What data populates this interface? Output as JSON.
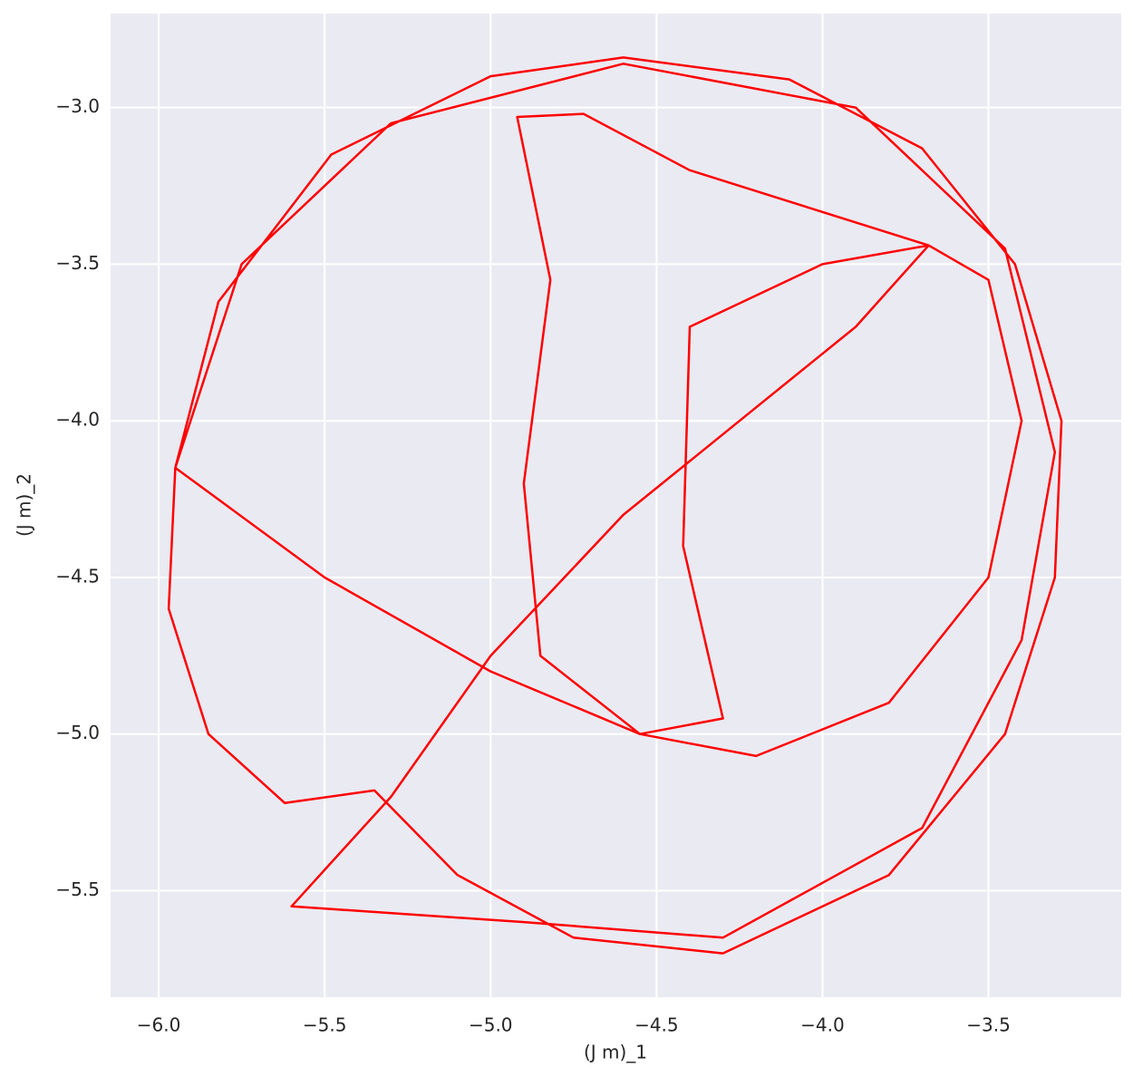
{
  "chart_data": {
    "type": "line",
    "xlabel": "(J m)_1",
    "ylabel": "(J m)_2",
    "color": "#ff0000",
    "background": "#eaeaf2",
    "grid": true,
    "xlim": [
      -6.145,
      -3.1
    ],
    "ylim": [
      -5.84,
      -2.7
    ],
    "xticks": [
      {
        "value": -6.0,
        "label": "−6.0"
      },
      {
        "value": -5.5,
        "label": "−5.5"
      },
      {
        "value": -5.0,
        "label": "−5.0"
      },
      {
        "value": -4.5,
        "label": "−4.5"
      },
      {
        "value": -4.0,
        "label": "−4.0"
      },
      {
        "value": -3.5,
        "label": "−3.5"
      }
    ],
    "yticks": [
      {
        "value": -3.0,
        "label": "−3.0"
      },
      {
        "value": -3.5,
        "label": "−3.5"
      },
      {
        "value": -4.0,
        "label": "−4.0"
      },
      {
        "value": -4.5,
        "label": "−4.5"
      },
      {
        "value": -5.0,
        "label": "−5.0"
      },
      {
        "value": -5.5,
        "label": "−5.5"
      }
    ],
    "x": [
      -5.95,
      -5.82,
      -5.48,
      -5.0,
      -4.6,
      -4.1,
      -3.7,
      -3.42,
      -3.28,
      -3.3,
      -3.45,
      -3.8,
      -4.3,
      -4.75,
      -5.1,
      -5.35,
      -5.62,
      -5.85,
      -5.97,
      -5.95,
      -5.5,
      -5.0,
      -4.55,
      -4.2,
      -3.8,
      -3.5,
      -3.4,
      -3.5,
      -3.68,
      -4.0,
      -4.4,
      -4.42,
      -4.3,
      -4.55,
      -4.85,
      -4.9,
      -4.82,
      -4.92,
      -4.72,
      -4.4,
      -4.1,
      -3.68,
      -3.9,
      -4.25,
      -4.6,
      -5.0,
      -5.3,
      -5.6,
      -4.9,
      -4.3,
      -3.7,
      -3.4,
      -3.3,
      -3.45,
      -3.9,
      -4.6,
      -5.3,
      -5.75,
      -5.95
    ],
    "values": [
      -4.15,
      -3.62,
      -3.15,
      -2.9,
      -2.84,
      -2.91,
      -3.13,
      -3.5,
      -4.0,
      -4.5,
      -5.0,
      -5.45,
      -5.7,
      -5.65,
      -5.45,
      -5.18,
      -5.22,
      -5.0,
      -4.6,
      -4.15,
      -4.5,
      -4.8,
      -5.0,
      -5.07,
      -4.9,
      -4.5,
      -4.0,
      -3.55,
      -3.44,
      -3.5,
      -3.7,
      -4.4,
      -4.95,
      -5.0,
      -4.75,
      -4.2,
      -3.55,
      -3.03,
      -3.02,
      -3.2,
      -3.3,
      -3.44,
      -3.7,
      -4.0,
      -4.3,
      -4.75,
      -5.2,
      -5.55,
      -5.6,
      -5.65,
      -5.3,
      -4.7,
      -4.1,
      -3.45,
      -3.0,
      -2.86,
      -3.05,
      -3.5,
      -4.15
    ]
  }
}
